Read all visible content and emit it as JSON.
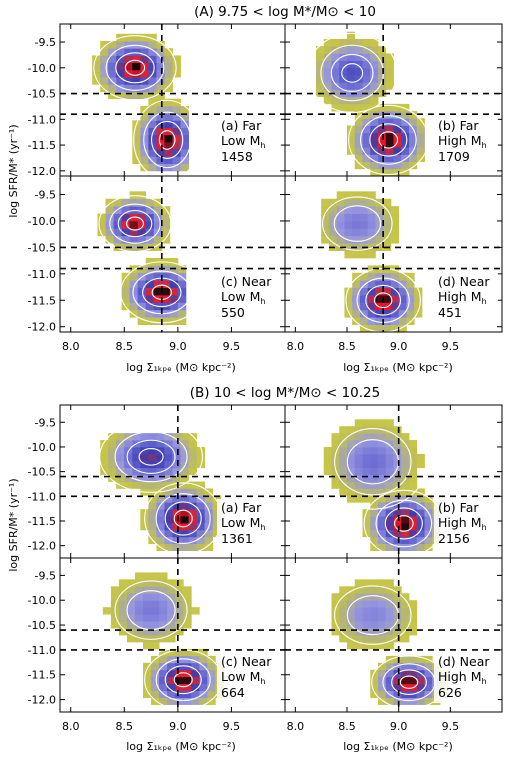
{
  "sections": [
    {
      "title": "(A) 9.75 < log M*/M⊙ < 10",
      "ylabel": "log SFR/M* (yr⁻¹)",
      "xlabel": "log Σ₁ₖₚₑ (M⊙ kpc⁻²)",
      "panels": [
        {
          "label": "(a) Far",
          "label2": "Low M",
          "sub": "h",
          "count": "1458"
        },
        {
          "label": "(b) Far",
          "label2": "High M",
          "sub": "h",
          "count": "1709"
        },
        {
          "label": "(c) Near",
          "label2": "Low M",
          "sub": "h",
          "count": "550"
        },
        {
          "label": "(d) Near",
          "label2": "High M",
          "sub": "h",
          "count": "451"
        }
      ]
    },
    {
      "title": "(B) 10 < log M*/M⊙ < 10.25",
      "ylabel": "log SFR/M* (yr⁻¹)",
      "xlabel": "log Σ₁ₖₚₑ (M⊙ kpc⁻²)",
      "panels": [
        {
          "label": "(a) Far",
          "label2": "Low M",
          "sub": "h",
          "count": "1361"
        },
        {
          "label": "(b) Far",
          "label2": "High M",
          "sub": "h",
          "count": "2156"
        },
        {
          "label": "(c) Near",
          "label2": "Low M",
          "sub": "h",
          "count": "664"
        },
        {
          "label": "(d) Near",
          "label2": "High M",
          "sub": "h",
          "count": "626"
        }
      ]
    }
  ],
  "chart_data": [
    {
      "type": "heatmap",
      "title": "(A) 9.75 < log M*/M⊙ < 10",
      "xlabel": "log Σ1kpc (M⊙ kpc⁻²)",
      "ylabel": "log SFR/M* (yr⁻¹)",
      "xlim": [
        7.9,
        10.0
      ],
      "ylim": [
        -12.1,
        -9.15
      ],
      "xticks": [
        "8.0",
        "8.5",
        "9.0",
        "9.5"
      ],
      "yticks": [
        "-9.5",
        "-10.0",
        "-10.5",
        "-11.0",
        "-11.5",
        "-12.0"
      ],
      "dashed_lines": {
        "x": 8.85,
        "y": [
          -10.5,
          -10.9
        ]
      },
      "panels": [
        {
          "name": "(a) Far Low Mh",
          "count": 1458,
          "blobs": [
            {
              "x": 8.6,
              "y": -10.0,
              "peak": 1.0,
              "sx": 0.16,
              "sy": 0.26
            },
            {
              "x": 8.9,
              "y": -11.4,
              "peak": 1.0,
              "sx": 0.13,
              "sy": 0.32
            }
          ],
          "extent": {
            "x": [
              8.05,
              9.05
            ],
            "y": [
              -12.0,
              -9.3
            ]
          }
        },
        {
          "name": "(b) Far High Mh",
          "count": 1709,
          "blobs": [
            {
              "x": 8.55,
              "y": -10.1,
              "peak": 0.55,
              "sx": 0.18,
              "sy": 0.32
            },
            {
              "x": 8.9,
              "y": -11.4,
              "peak": 1.0,
              "sx": 0.16,
              "sy": 0.28
            }
          ],
          "extent": {
            "x": [
              8.2,
              9.2
            ],
            "y": [
              -12.1,
              -9.35
            ]
          }
        },
        {
          "name": "(c) Near Low Mh",
          "count": 550,
          "blobs": [
            {
              "x": 8.6,
              "y": -10.05,
              "peak": 0.95,
              "sx": 0.14,
              "sy": 0.22
            },
            {
              "x": 8.85,
              "y": -11.35,
              "peak": 1.0,
              "sx": 0.16,
              "sy": 0.24
            }
          ],
          "extent": {
            "x": [
              8.1,
              9.05
            ],
            "y": [
              -12.1,
              -9.35
            ]
          }
        },
        {
          "name": "(d) Near High Mh",
          "count": 451,
          "blobs": [
            {
              "x": 8.6,
              "y": -10.05,
              "peak": 0.35,
              "sx": 0.2,
              "sy": 0.3
            },
            {
              "x": 8.85,
              "y": -11.5,
              "peak": 1.0,
              "sx": 0.15,
              "sy": 0.25
            }
          ],
          "extent": {
            "x": [
              8.25,
              9.25
            ],
            "y": [
              -12.1,
              -9.5
            ]
          }
        }
      ]
    },
    {
      "type": "heatmap",
      "title": "(B) 10 < log M*/M⊙ < 10.25",
      "xlabel": "log Σ1kpc (M⊙ kpc⁻²)",
      "ylabel": "log SFR/M* (yr⁻¹)",
      "xlim": [
        7.9,
        10.0
      ],
      "ylim": [
        -12.25,
        -9.15
      ],
      "xticks": [
        "8.0",
        "8.5",
        "9.0",
        "9.5"
      ],
      "yticks": [
        "-9.5",
        "-10.0",
        "-10.5",
        "-11.0",
        "-11.5",
        "-12.0"
      ],
      "dashed_lines": {
        "x": 9.0,
        "y": [
          -10.6,
          -11.0
        ]
      },
      "panels": [
        {
          "name": "(a) Far Low Mh",
          "count": 1361,
          "blobs": [
            {
              "x": 8.75,
              "y": -10.2,
              "peak": 0.7,
              "sx": 0.2,
              "sy": 0.3
            },
            {
              "x": 9.05,
              "y": -11.45,
              "peak": 1.0,
              "sx": 0.15,
              "sy": 0.3
            }
          ],
          "extent": {
            "x": [
              8.2,
              9.35
            ],
            "y": [
              -12.1,
              -9.75
            ]
          }
        },
        {
          "name": "(b) Far High Mh",
          "count": 2156,
          "blobs": [
            {
              "x": 8.75,
              "y": -10.3,
              "peak": 0.4,
              "sx": 0.22,
              "sy": 0.4
            },
            {
              "x": 9.05,
              "y": -11.55,
              "peak": 1.0,
              "sx": 0.16,
              "sy": 0.28
            }
          ],
          "extent": {
            "x": [
              8.2,
              9.35
            ],
            "y": [
              -12.1,
              -9.45
            ]
          }
        },
        {
          "name": "(c) Near Low Mh",
          "count": 664,
          "blobs": [
            {
              "x": 8.75,
              "y": -10.2,
              "peak": 0.35,
              "sx": 0.2,
              "sy": 0.35
            },
            {
              "x": 9.05,
              "y": -11.6,
              "peak": 1.0,
              "sx": 0.15,
              "sy": 0.25
            }
          ],
          "extent": {
            "x": [
              8.3,
              9.35
            ],
            "y": [
              -12.1,
              -9.4
            ]
          }
        },
        {
          "name": "(d) Near High Mh",
          "count": 626,
          "blobs": [
            {
              "x": 8.75,
              "y": -10.3,
              "peak": 0.3,
              "sx": 0.22,
              "sy": 0.35
            },
            {
              "x": 9.1,
              "y": -11.65,
              "peak": 1.0,
              "sx": 0.15,
              "sy": 0.22
            }
          ],
          "extent": {
            "x": [
              8.35,
              9.4
            ],
            "y": [
              -12.1,
              -9.45
            ]
          }
        }
      ]
    }
  ]
}
